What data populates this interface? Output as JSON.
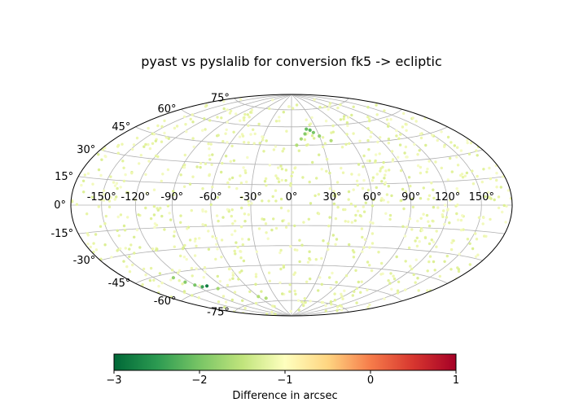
{
  "chart_data": {
    "type": "scatter",
    "projection": "aitoff-hammer",
    "title": "pyast vs pyslalib for conversion fk5 -> ecliptic",
    "x_tick_labels": [
      "-150°",
      "-120°",
      "-90°",
      "-60°",
      "-30°",
      "0°",
      "30°",
      "60°",
      "90°",
      "120°",
      "150°"
    ],
    "y_tick_labels": [
      "-75°",
      "-60°",
      "-45°",
      "-30°",
      "-15°",
      "0°",
      "15°",
      "30°",
      "45°",
      "60°",
      "75°"
    ],
    "colorbar": {
      "label": "Difference in arcsec",
      "range": [
        -3,
        1
      ],
      "tick_labels": [
        "−3",
        "−2",
        "−1",
        "0",
        "1"
      ],
      "colormap": "RdYlGn_r"
    },
    "grid": true,
    "point_color_dominant": "#eef7b0",
    "points": [
      {
        "lon": 18,
        "lat": 58,
        "v": -2.1
      },
      {
        "lon": 22,
        "lat": 57,
        "v": -2.2
      },
      {
        "lon": 15,
        "lat": 54,
        "v": -1.9
      },
      {
        "lon": 25,
        "lat": 55,
        "v": -2.0
      },
      {
        "lon": 30,
        "lat": 52,
        "v": -1.8
      },
      {
        "lon": 10,
        "lat": 50,
        "v": -1.7
      },
      {
        "lon": 40,
        "lat": 48,
        "v": -1.6
      },
      {
        "lon": 5,
        "lat": 45,
        "v": -1.6
      },
      {
        "lon": -120,
        "lat": -55,
        "v": -2.0
      },
      {
        "lon": -125,
        "lat": -52,
        "v": -1.9
      },
      {
        "lon": -115,
        "lat": -57,
        "v": -2.4
      },
      {
        "lon": -108,
        "lat": -57,
        "v": -2.8
      },
      {
        "lon": -130,
        "lat": -48,
        "v": -1.8
      },
      {
        "lon": -100,
        "lat": -60,
        "v": -1.7
      },
      {
        "lon": -60,
        "lat": -70,
        "v": -1.6
      },
      {
        "lon": -50,
        "lat": -72,
        "v": -1.6
      }
    ]
  }
}
